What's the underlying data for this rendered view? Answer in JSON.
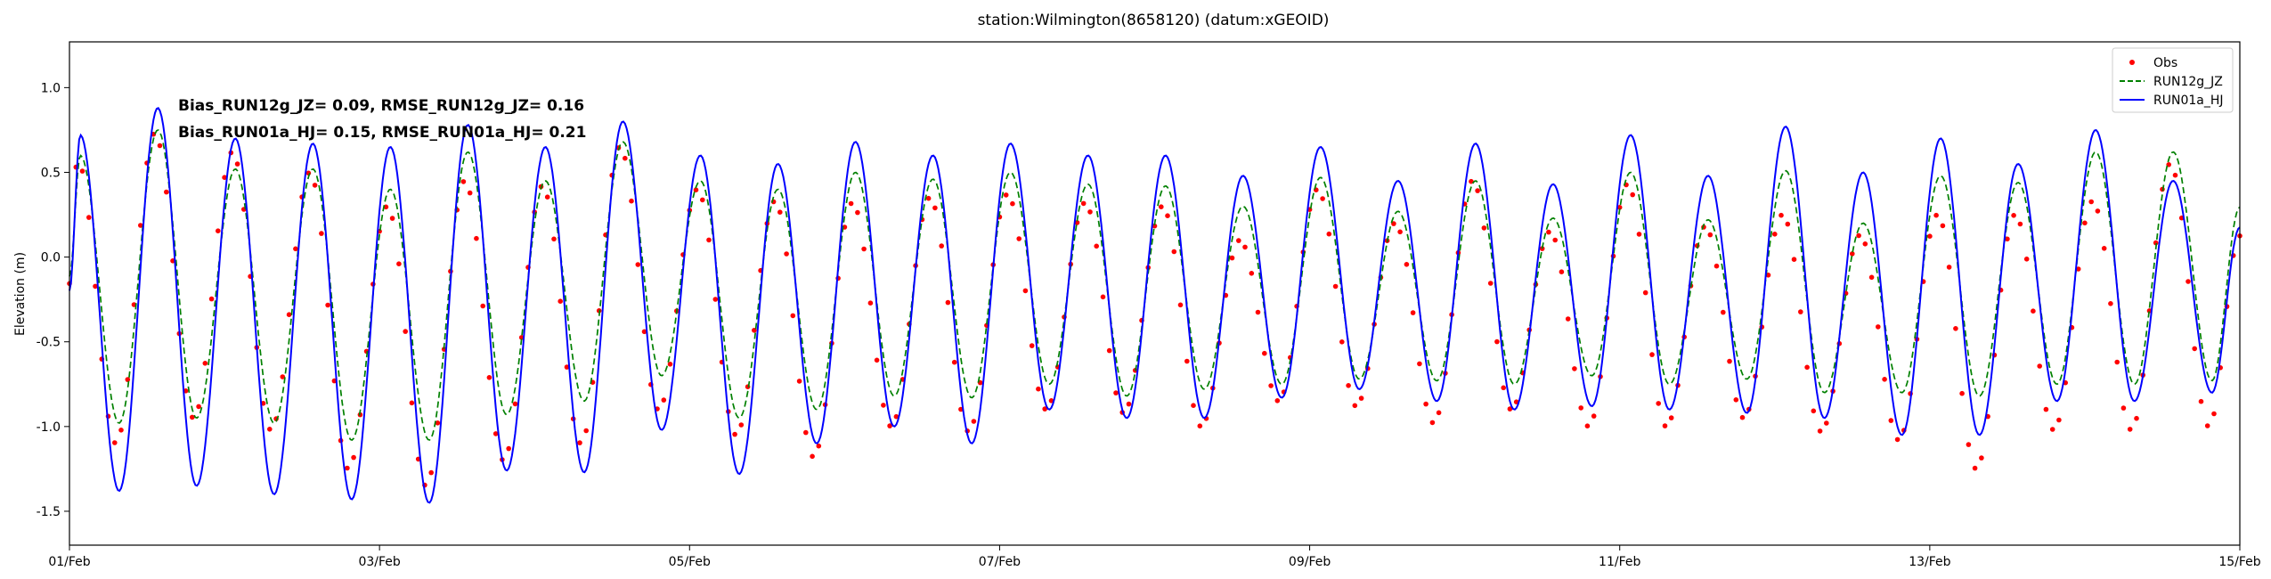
{
  "chart_data": {
    "type": "line",
    "title": "station:Wilmington(8658120) (datum:xGEOID)",
    "xlabel": "",
    "ylabel": "Elevation (m)",
    "xlim": [
      "01/Feb",
      "15/Feb"
    ],
    "x_range_days": [
      1,
      15
    ],
    "ylim": [
      -1.7,
      1.27
    ],
    "x_ticks": [
      "01/Feb",
      "03/Feb",
      "05/Feb",
      "07/Feb",
      "09/Feb",
      "11/Feb",
      "13/Feb",
      "15/Feb"
    ],
    "y_ticks": [
      "-1.5",
      "-1.0",
      "-0.5",
      "0.0",
      "0.5",
      "1.0"
    ],
    "grid": false,
    "legend_position": "top-right",
    "annotations": [
      "Bias_RUN12g_JZ=  0.09, RMSE_RUN12g_JZ=  0.16",
      "Bias_RUN01a_HJ= 0.15, RMSE_RUN01a_HJ=  0.21"
    ],
    "series": [
      {
        "name": "Obs",
        "style": "points",
        "color": "#ff0000",
        "x": [
          1.05,
          1.55,
          2.05,
          2.55,
          3.05,
          3.55,
          4.05,
          4.55,
          5.05,
          5.55,
          6.05,
          6.55,
          7.05,
          7.55,
          8.05,
          8.55,
          9.05,
          9.55,
          10.05,
          10.55,
          11.05,
          11.55,
          12.05,
          12.55,
          13.05,
          13.55,
          14.05,
          14.55
        ],
        "high": [
          0.58,
          0.73,
          0.62,
          0.5,
          0.3,
          0.45,
          0.42,
          0.65,
          0.4,
          0.33,
          0.32,
          0.35,
          0.37,
          0.32,
          0.3,
          0.1,
          0.4,
          0.2,
          0.45,
          0.15,
          0.43,
          0.18,
          0.25,
          0.13,
          0.25,
          0.25,
          0.33,
          0.55
        ],
        "low": [
          -1.1,
          -0.95,
          -1.02,
          -1.25,
          -1.35,
          -1.2,
          -1.1,
          -0.9,
          -1.05,
          -1.18,
          -1.0,
          -1.03,
          -0.9,
          -0.92,
          -1.0,
          -0.85,
          -0.88,
          -0.98,
          -0.9,
          -1.0,
          -1.0,
          -0.95,
          -1.03,
          -1.08,
          -1.25,
          -1.02,
          -1.02,
          -1.0
        ]
      },
      {
        "name": "RUN12g_JZ",
        "style": "dashed",
        "color": "#008000",
        "x": [
          1.07,
          1.57,
          2.07,
          2.57,
          3.07,
          3.57,
          4.07,
          4.57,
          5.07,
          5.57,
          6.07,
          6.57,
          7.07,
          7.57,
          8.07,
          8.57,
          9.07,
          9.57,
          10.07,
          10.57,
          11.07,
          11.57,
          12.07,
          12.57,
          13.07,
          13.57,
          14.07,
          14.57
        ],
        "high": [
          0.6,
          0.75,
          0.52,
          0.52,
          0.4,
          0.62,
          0.45,
          0.68,
          0.45,
          0.4,
          0.5,
          0.46,
          0.5,
          0.43,
          0.42,
          0.3,
          0.47,
          0.27,
          0.45,
          0.23,
          0.5,
          0.22,
          0.51,
          0.2,
          0.48,
          0.44,
          0.62,
          0.62
        ],
        "low": [
          -0.98,
          -0.95,
          -0.98,
          -1.08,
          -1.08,
          -0.93,
          -0.85,
          -0.7,
          -0.95,
          -0.9,
          -0.82,
          -0.83,
          -0.75,
          -0.82,
          -0.78,
          -0.75,
          -0.72,
          -0.73,
          -0.75,
          -0.7,
          -0.75,
          -0.72,
          -0.8,
          -0.8,
          -0.82,
          -0.75,
          -0.75,
          -0.73
        ]
      },
      {
        "name": "RUN01a_HJ",
        "style": "solid",
        "color": "#0000ff",
        "x": [
          1.07,
          1.57,
          2.07,
          2.57,
          3.07,
          3.57,
          4.07,
          4.57,
          5.07,
          5.57,
          6.07,
          6.57,
          7.07,
          7.57,
          8.07,
          8.57,
          9.07,
          9.57,
          10.07,
          10.57,
          11.07,
          11.57,
          12.07,
          12.57,
          13.07,
          13.57,
          14.07,
          14.57
        ],
        "high": [
          0.72,
          0.88,
          0.7,
          0.67,
          0.65,
          0.78,
          0.65,
          0.8,
          0.6,
          0.55,
          0.68,
          0.6,
          0.67,
          0.6,
          0.6,
          0.48,
          0.65,
          0.45,
          0.67,
          0.43,
          0.72,
          0.48,
          0.77,
          0.5,
          0.7,
          0.55,
          0.75,
          0.45
        ],
        "low": [
          -1.38,
          -1.35,
          -1.4,
          -1.43,
          -1.45,
          -1.26,
          -1.27,
          -1.02,
          -1.28,
          -1.1,
          -1.0,
          -1.1,
          -0.9,
          -0.95,
          -0.95,
          -0.83,
          -0.78,
          -0.85,
          -0.9,
          -0.88,
          -0.9,
          -0.92,
          -0.95,
          -1.05,
          -1.05,
          -0.85,
          -0.85,
          -0.8
        ]
      }
    ]
  }
}
